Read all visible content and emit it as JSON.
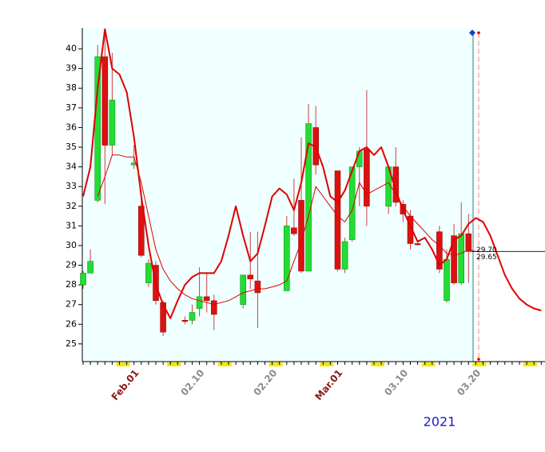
{
  "chart_data": {
    "type": "candlestick",
    "categories": [
      null,
      null,
      null,
      null,
      null,
      null,
      null,
      "Feb.01",
      null,
      null,
      null,
      null,
      null,
      null,
      null,
      null,
      "02.10",
      null,
      null,
      null,
      null,
      null,
      null,
      null,
      null,
      null,
      "02.20",
      null,
      null,
      null,
      null,
      null,
      null,
      null,
      null,
      "Mar.01",
      null,
      null,
      null,
      null,
      null,
      null,
      null,
      null,
      "03.10",
      null,
      null,
      null,
      null,
      null,
      null,
      null,
      null,
      null,
      "03.20",
      null,
      null,
      null,
      null,
      null,
      null,
      null,
      null,
      null
    ],
    "category_label_colors": [
      null,
      null,
      null,
      null,
      null,
      null,
      null,
      "#8b1a1a",
      null,
      null,
      null,
      null,
      null,
      null,
      null,
      null,
      "#8c8c8c",
      null,
      null,
      null,
      null,
      null,
      null,
      null,
      null,
      null,
      "#8c8c8c",
      null,
      null,
      null,
      null,
      null,
      null,
      null,
      null,
      "#8b1a1a",
      null,
      null,
      null,
      null,
      null,
      null,
      null,
      null,
      "#8c8c8c",
      null,
      null,
      null,
      null,
      null,
      null,
      null,
      null,
      null,
      "#8c8c8c",
      null,
      null,
      null,
      null,
      null,
      null,
      null,
      null,
      null
    ],
    "candles": {
      "up_color": "#22dd33",
      "down_color": "#dd1111",
      "open": [
        28.0,
        28.6,
        32.3,
        39.6,
        35.1,
        null,
        null,
        34.1,
        32.0,
        28.1,
        29.0,
        27.1,
        null,
        null,
        26.2,
        26.2,
        26.8,
        27.4,
        27.2,
        null,
        null,
        null,
        27.0,
        28.5,
        28.2,
        null,
        null,
        null,
        27.7,
        30.9,
        32.3,
        28.7,
        36.0,
        null,
        null,
        33.8,
        28.8,
        30.3,
        34.0,
        34.9,
        null,
        null,
        32.0,
        34.0,
        32.1,
        31.5,
        30.1,
        null,
        null,
        30.7,
        27.2,
        30.5,
        28.1,
        30.6,
        null,
        null,
        null,
        null,
        null,
        null,
        null,
        null,
        null,
        null
      ],
      "high": [
        28.7,
        29.8,
        40.2,
        41.0,
        39.8,
        null,
        null,
        35.1,
        32.8,
        29.3,
        29.2,
        27.2,
        null,
        null,
        26.4,
        27.0,
        28.9,
        28.6,
        27.5,
        null,
        null,
        null,
        28.5,
        30.7,
        30.7,
        null,
        null,
        null,
        31.5,
        33.4,
        35.5,
        37.2,
        37.1,
        null,
        null,
        33.8,
        30.4,
        34.0,
        35.0,
        37.9,
        null,
        null,
        34.0,
        35.0,
        32.3,
        31.8,
        30.3,
        null,
        null,
        31.0,
        29.8,
        31.1,
        32.2,
        31.6,
        null,
        null,
        null,
        null,
        null,
        null,
        null,
        null,
        null,
        null
      ],
      "low": [
        27.8,
        28.6,
        32.2,
        32.1,
        34.6,
        null,
        null,
        33.9,
        29.4,
        27.9,
        27.0,
        25.4,
        null,
        null,
        26.0,
        26.0,
        26.4,
        26.6,
        25.7,
        null,
        null,
        null,
        26.8,
        27.8,
        25.8,
        null,
        null,
        null,
        27.7,
        30.5,
        28.6,
        28.7,
        33.6,
        null,
        null,
        28.7,
        28.6,
        30.2,
        32.0,
        31.0,
        null,
        null,
        31.6,
        32.0,
        31.2,
        29.8,
        30.0,
        null,
        null,
        28.6,
        27.1,
        28.0,
        28.0,
        28.1,
        null,
        null,
        null,
        null,
        null,
        null,
        null,
        null,
        null,
        null
      ],
      "close": [
        28.6,
        29.2,
        39.6,
        35.1,
        37.4,
        null,
        null,
        34.2,
        29.5,
        29.1,
        27.2,
        25.6,
        null,
        null,
        26.2,
        26.6,
        27.4,
        27.2,
        26.5,
        null,
        null,
        null,
        28.5,
        28.3,
        27.6,
        null,
        null,
        null,
        31.0,
        30.6,
        28.7,
        36.2,
        34.1,
        null,
        null,
        28.8,
        30.2,
        34.0,
        34.8,
        32.0,
        null,
        null,
        34.0,
        32.2,
        31.6,
        30.1,
        30.1,
        null,
        null,
        28.8,
        29.3,
        28.1,
        30.6,
        29.7,
        null,
        null,
        null,
        null,
        null,
        null,
        null,
        null,
        null,
        null
      ]
    },
    "lines": [
      {
        "color": "#e00000",
        "width": 2,
        "values": [
          32.5,
          34,
          38,
          41,
          39,
          38.7,
          37.8,
          35.5,
          32.5,
          30,
          28,
          27,
          26.3,
          27.2,
          28,
          28.4,
          28.6,
          28.6,
          28.6,
          29.2,
          30.5,
          32.0,
          30.5,
          29.2,
          29.6,
          31,
          32.5,
          32.9,
          32.6,
          31.8,
          33.2,
          35.2,
          35,
          34,
          32.5,
          32.2,
          32.8,
          33.8,
          34.8,
          35,
          34.6,
          35.0,
          34,
          32.8,
          31.8,
          31,
          30.2,
          30.4,
          29.8,
          29.0,
          29.3,
          30.3,
          30.5,
          31.1,
          31.4,
          31.2,
          30.5,
          29.5,
          28.5,
          27.8,
          27.3,
          27.0,
          26.8,
          26.7
        ]
      },
      {
        "color": "#e00000",
        "width": 1,
        "values": [
          null,
          null,
          32.5,
          33.5,
          34.6,
          34.6,
          34.5,
          34.5,
          33.2,
          31.5,
          29.8,
          28.8,
          28.2,
          27.8,
          27.5,
          27.3,
          27.2,
          27.1,
          27.0,
          27.1,
          27.2,
          27.4,
          27.6,
          27.7,
          27.8,
          27.8,
          27.9,
          28.0,
          28.2,
          29.2,
          30.2,
          31.5,
          33.0,
          32.5,
          32.0,
          31.5,
          31.2,
          31.8,
          33.2,
          32.6,
          32.8,
          33.0,
          33.2,
          32.6,
          32.0,
          31.5,
          31.1,
          30.7,
          30.3,
          30.0,
          29.6,
          29.5,
          29.6,
          29.8,
          29.7,
          null,
          null,
          null,
          null,
          null,
          null,
          null,
          null,
          null
        ]
      }
    ],
    "price_labels": [
      {
        "value": 29.7,
        "label": "29.70"
      },
      {
        "value": 29.65,
        "label": "29.65"
      }
    ],
    "ylim": [
      24.1,
      41.06
    ],
    "yticks": [
      25,
      26,
      27,
      28,
      29,
      30,
      31,
      32,
      33,
      34,
      35,
      36,
      37,
      38,
      39,
      40
    ],
    "year_label": "2021"
  }
}
